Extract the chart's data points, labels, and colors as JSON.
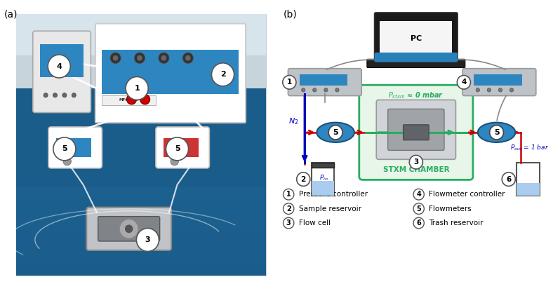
{
  "panel_a_label": "(a)",
  "panel_b_label": "(b)",
  "legend_items": [
    {
      "num": "1",
      "text": "Pressure controller"
    },
    {
      "num": "2",
      "text": "Sample reservoir"
    },
    {
      "num": "3",
      "text": "Flow cell"
    },
    {
      "num": "4",
      "text": "Flowmeter controller"
    },
    {
      "num": "5",
      "text": "Flowmeters"
    },
    {
      "num": "6",
      "text": "Trash reservoir"
    }
  ],
  "stxm_label": "STXM CHAMBER",
  "p_in_label": "$P_{in}$",
  "p_out_label": "$P_{out}$ = 1 bar",
  "n2_label": "$N_2$",
  "pc_label": "PC",
  "bg_color": "#ffffff",
  "photo_bg": "#1a5276",
  "stxm_box_color": "#e8f5e9",
  "stxm_border_color": "#27ae60",
  "device_gray": "#bdc3c7",
  "device_blue_stripe": "#2e86c1",
  "flowmeter_blue": "#2e86c1",
  "flow_line_red": "#cc0000",
  "n2_arrow_blue": "#0000bb",
  "label_blue": "#0000bb",
  "gray_line": "#888888",
  "circle_fill": "#ffffff",
  "circle_edge": "#555555",
  "green_seg": "#27ae60"
}
